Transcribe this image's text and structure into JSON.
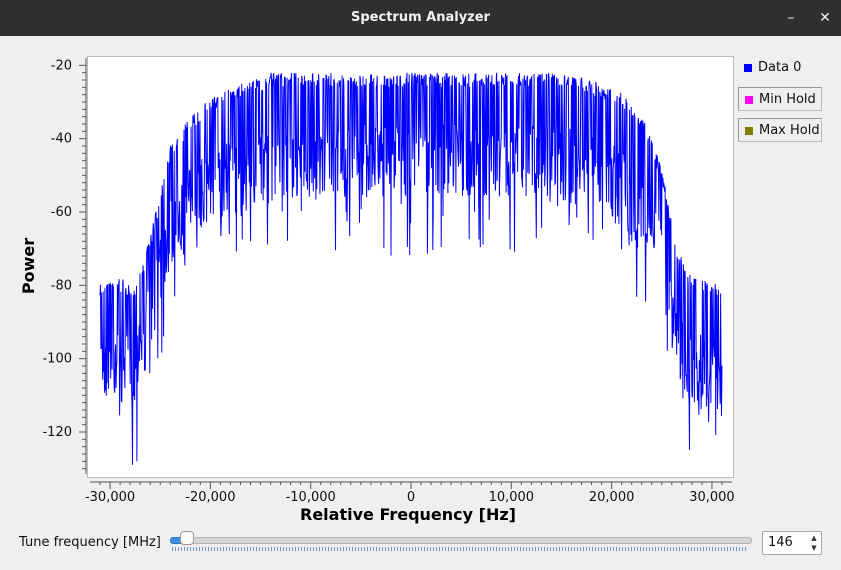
{
  "window": {
    "title": "Spectrum Analyzer",
    "minimize_glyph": "–",
    "close_glyph": "✕"
  },
  "legend": [
    {
      "label": "Data 0",
      "color": "#0000ff"
    },
    {
      "label": "Min Hold",
      "color": "#ff00ff"
    },
    {
      "label": "Max Hold",
      "color": "#808000"
    }
  ],
  "controls": {
    "tune_label": "Tune frequency [MHz]",
    "tune_value": "146",
    "slider_fraction": 0.03
  },
  "chart_data": {
    "type": "line",
    "title": "",
    "xlabel": "Relative Frequency [Hz]",
    "ylabel": "Power",
    "xlim": [
      -32000,
      32000
    ],
    "ylim": [
      -132,
      -18
    ],
    "xticks": [
      -30000,
      -20000,
      -10000,
      0,
      10000,
      20000,
      30000
    ],
    "xtick_labels": [
      "-30,000",
      "-20,000",
      "-10,000",
      "0",
      "10,000",
      "20,000",
      "30,000"
    ],
    "yticks": [
      -20,
      -40,
      -60,
      -80,
      -100,
      -120
    ],
    "ytick_labels": [
      "-20",
      "-40",
      "-60",
      "-80",
      "-100",
      "-120"
    ],
    "grid": false,
    "series": [
      {
        "name": "Data 0",
        "color": "#0000ff",
        "envelope_x": [
          -31000,
          -29000,
          -27500,
          -26500,
          -25000,
          -24000,
          -22000,
          -20000,
          -17000,
          -14000,
          -10000,
          -5000,
          0,
          5000,
          10000,
          15000,
          18000,
          21000,
          23000,
          25000,
          26500,
          28000,
          30000,
          31000
        ],
        "upper": [
          -79,
          -78,
          -80,
          -72,
          -55,
          -42,
          -34,
          -29,
          -25,
          -22,
          -22,
          -22,
          -22,
          -22,
          -22,
          -22,
          -24,
          -27,
          -33,
          -48,
          -70,
          -78,
          -79,
          -79
        ],
        "lower": [
          -104,
          -106,
          -108,
          -97,
          -78,
          -70,
          -62,
          -57,
          -54,
          -52,
          -50,
          -50,
          -50,
          -50,
          -50,
          -51,
          -54,
          -58,
          -67,
          -80,
          -98,
          -108,
          -108,
          -106
        ]
      }
    ]
  }
}
